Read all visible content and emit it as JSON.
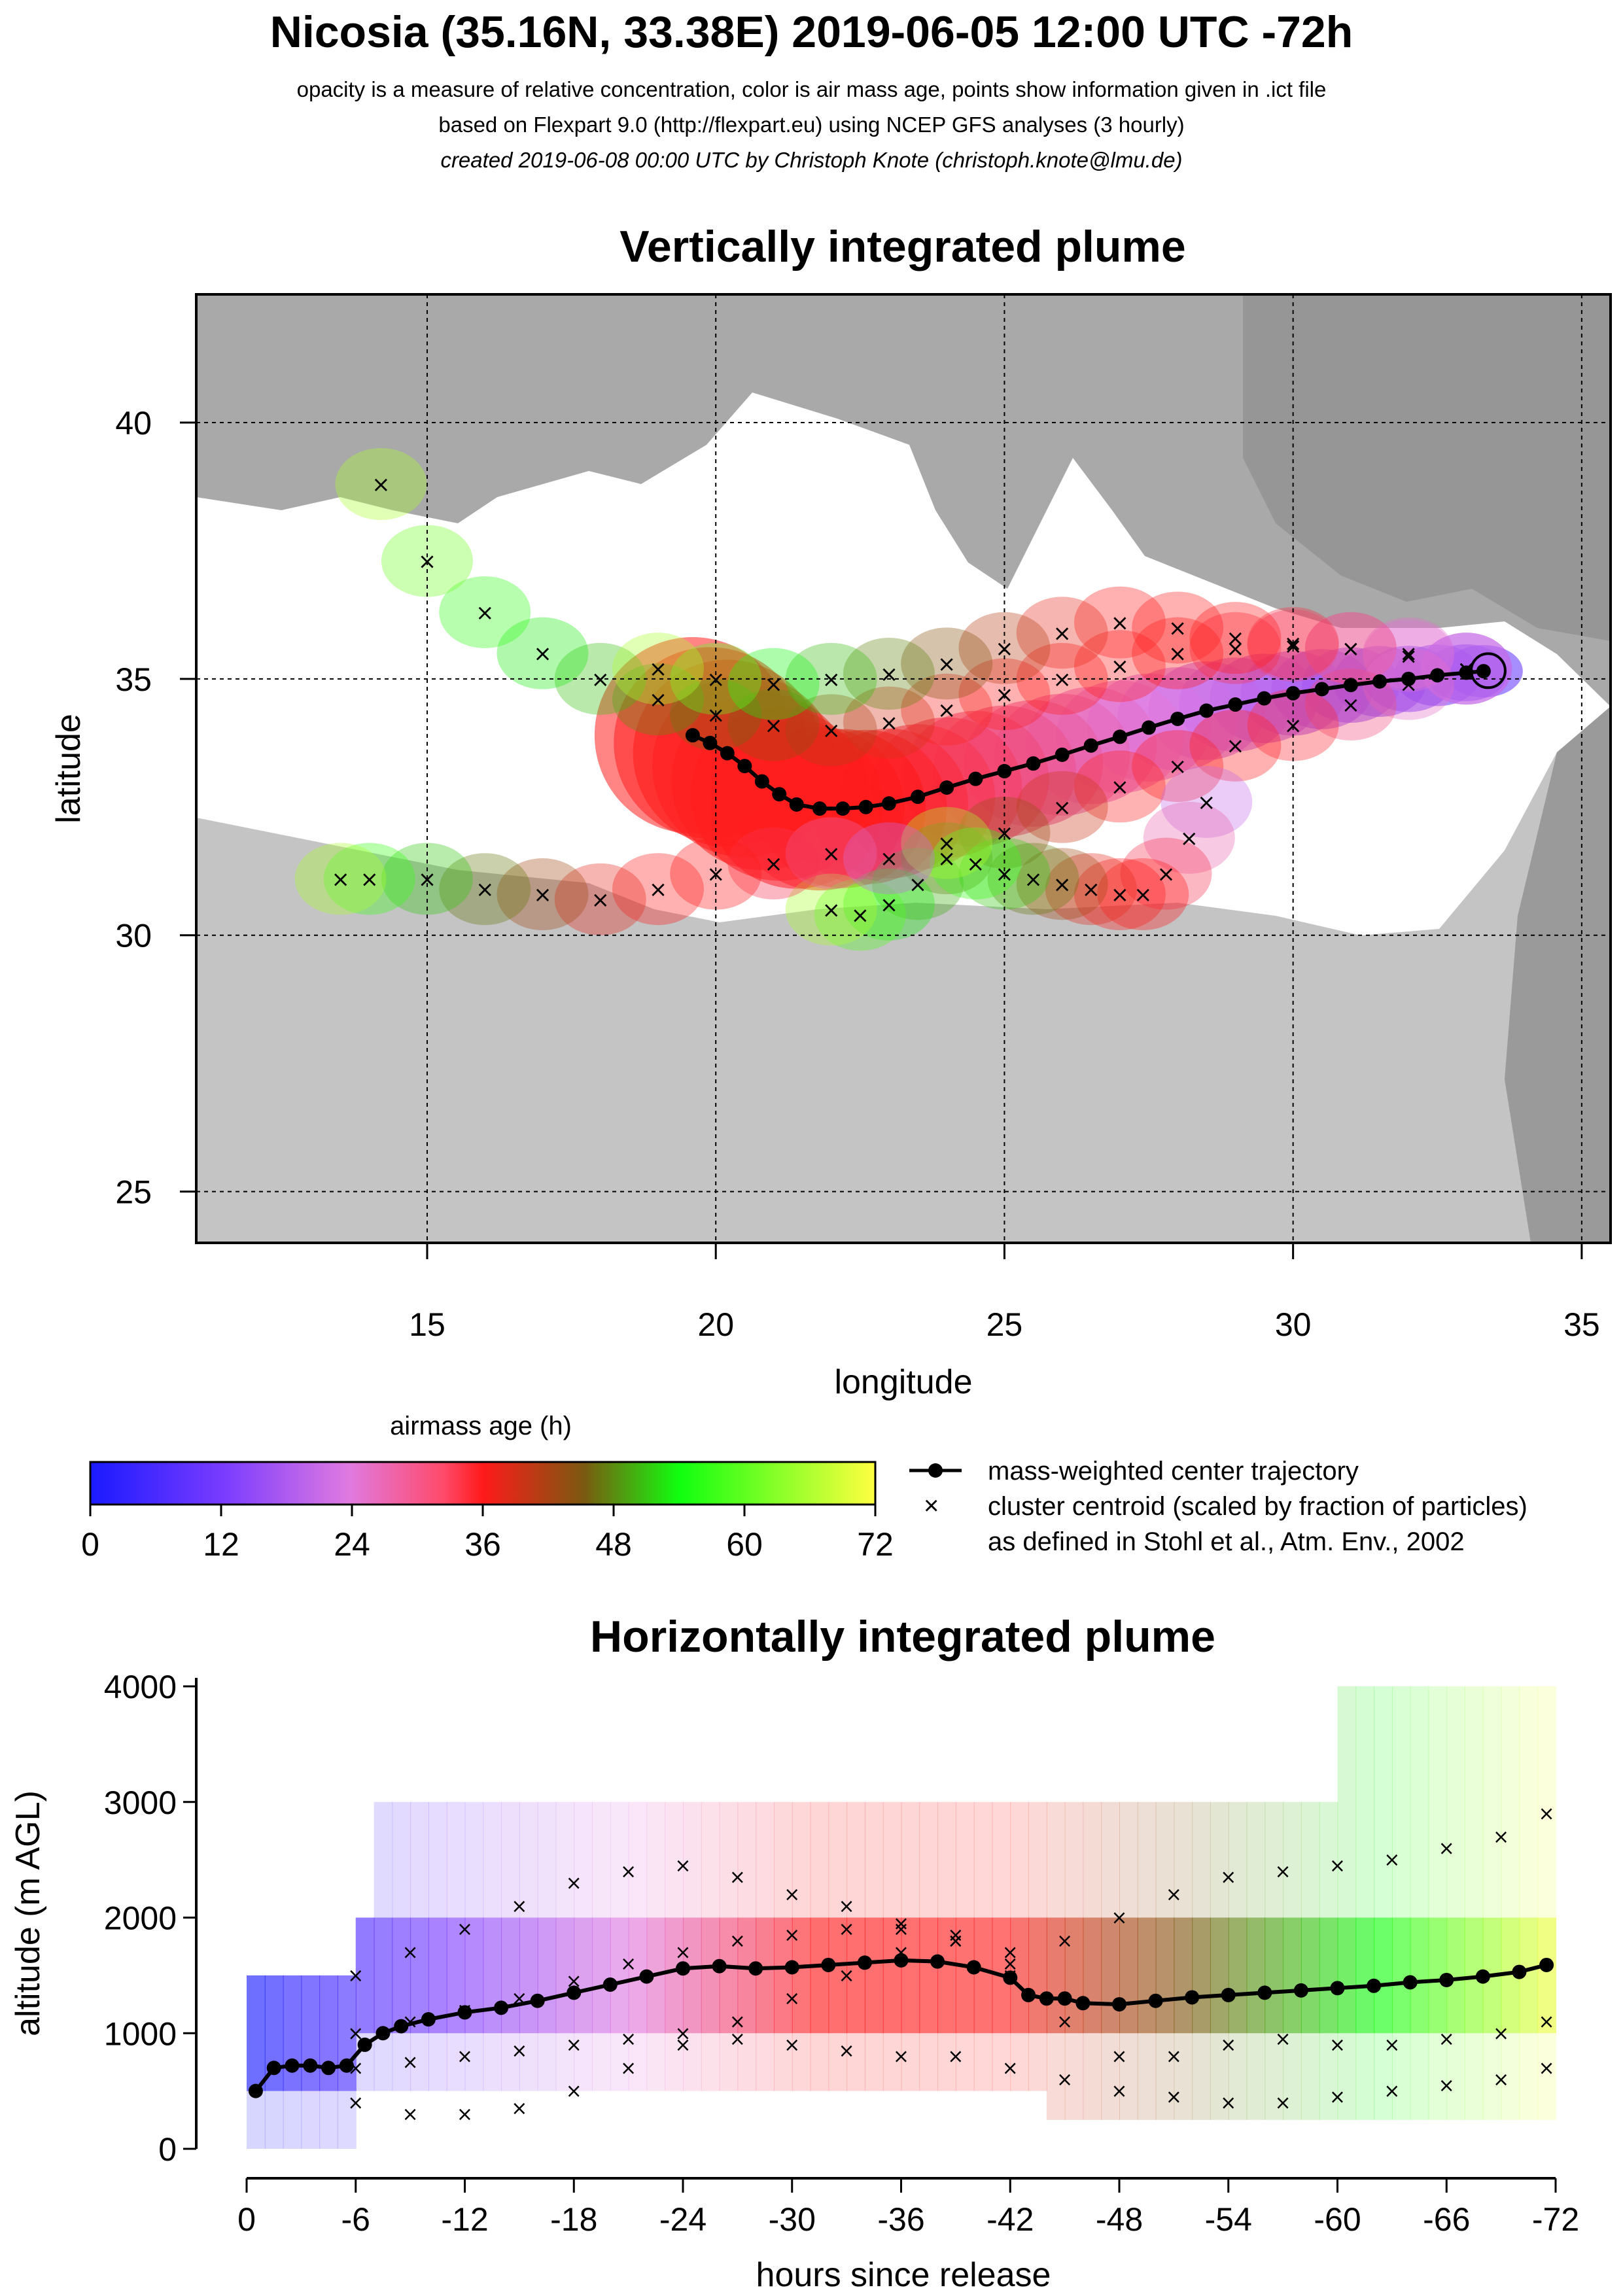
{
  "header": {
    "title": "Nicosia (35.16N, 33.38E) 2019-06-05 12:00 UTC -72h",
    "line1": "opacity is a measure of relative concentration, color is air mass age, points show information given in .ict file",
    "line2": "based on Flexpart 9.0 (http://flexpart.eu) using NCEP GFS analyses (3 hourly)",
    "line3": "created 2019-06-08 00:00 UTC by Christoph Knote (christoph.knote@lmu.de)"
  },
  "colors": {
    "age_ramp": [
      "#1a1aff",
      "#7a3cff",
      "#e07ae0",
      "#ff1a1a",
      "#ff2020",
      "#7a5a10",
      "#10ff10",
      "#ffff40"
    ],
    "land_gray": "#b8b8b8",
    "sea": "#ffffff"
  },
  "chart_data": [
    {
      "type": "scatter",
      "title": "Vertically integrated plume",
      "xlabel": "longitude",
      "ylabel": "latitude",
      "xlim": [
        11,
        35.5
      ],
      "ylim": [
        24,
        42.5
      ],
      "xticks": [
        15,
        20,
        25,
        30,
        35
      ],
      "yticks": [
        25,
        30,
        35,
        40
      ],
      "release_point": {
        "lon": 33.38,
        "lat": 35.16
      },
      "center_trajectory": {
        "name": "mass-weighted center trajectory",
        "lon": [
          33.3,
          33.0,
          32.5,
          32.0,
          31.5,
          31.0,
          30.5,
          30.0,
          29.5,
          29.0,
          28.5,
          28.0,
          27.5,
          27.0,
          26.5,
          26.0,
          25.5,
          25.0,
          24.5,
          24.0,
          23.5,
          23.0,
          22.6,
          22.2,
          21.8,
          21.4,
          21.1,
          20.8,
          20.5,
          20.2,
          19.9,
          19.6
        ],
        "lat": [
          35.15,
          35.12,
          35.07,
          35.0,
          34.95,
          34.88,
          34.8,
          34.72,
          34.62,
          34.5,
          34.38,
          34.22,
          34.05,
          33.87,
          33.7,
          33.52,
          33.35,
          33.2,
          33.05,
          32.88,
          32.7,
          32.57,
          32.5,
          32.47,
          32.47,
          32.55,
          32.75,
          33.0,
          33.3,
          33.55,
          33.75,
          33.9
        ]
      },
      "cluster_centroids": [
        {
          "lon": [
            33.0,
            32.0,
            31.0,
            30.0,
            29.0,
            28.0,
            27.0,
            26.0,
            25.0,
            24.0,
            23.0,
            22.0,
            21.0,
            20.0,
            19.0,
            18.0,
            17.0,
            16.0,
            15.0,
            14.2
          ],
          "lat": [
            35.2,
            35.45,
            35.6,
            35.65,
            35.6,
            35.5,
            35.25,
            35.0,
            34.7,
            34.4,
            34.15,
            34.0,
            34.1,
            34.3,
            34.6,
            35.0,
            35.5,
            36.3,
            37.3,
            38.8
          ]
        },
        {
          "lon": [
            33.0,
            32.0,
            31.0,
            30.0,
            29.0,
            28.0,
            27.0,
            26.0,
            25.0,
            24.0,
            23.0,
            22.0,
            21.0,
            20.0,
            19.0
          ],
          "lat": [
            35.2,
            35.5,
            35.6,
            35.7,
            35.8,
            36.0,
            36.1,
            35.9,
            35.6,
            35.3,
            35.1,
            35.0,
            34.9,
            35.0,
            35.2
          ]
        },
        {
          "lon": [
            33.0,
            32.0,
            31.0,
            30.0,
            29.0,
            28.0,
            27.0,
            26.0,
            25.0,
            24.0,
            23.5,
            23.0,
            22.5,
            22.0
          ],
          "lat": [
            35.2,
            34.9,
            34.5,
            34.1,
            33.7,
            33.3,
            32.9,
            32.5,
            32.0,
            31.5,
            31.0,
            30.6,
            30.4,
            30.5
          ]
        },
        {
          "lon": [
            28.5,
            28.2,
            27.8,
            27.4,
            27.0,
            26.5,
            26.0,
            25.5,
            25.0,
            24.5,
            24.0
          ],
          "lat": [
            32.6,
            31.9,
            31.2,
            30.8,
            30.8,
            30.9,
            31.0,
            31.1,
            31.2,
            31.4,
            31.8
          ]
        },
        {
          "lon": [
            23.0,
            22.0,
            21.0,
            20.0,
            19.0,
            18.0,
            17.0,
            16.0,
            15.0,
            14.0,
            13.5
          ],
          "lat": [
            31.5,
            31.6,
            31.4,
            31.2,
            30.9,
            30.7,
            30.8,
            30.9,
            31.1,
            31.1,
            31.1
          ]
        }
      ]
    },
    {
      "type": "line",
      "title": "Horizontally integrated plume",
      "xlabel": "hours since release",
      "ylabel": "altitude (m AGL)",
      "xlim": [
        0,
        -72
      ],
      "ylim": [
        0,
        4000
      ],
      "xtick_labels": [
        "0",
        "-6",
        "-12",
        "-18",
        "-24",
        "-30",
        "-36",
        "-42",
        "-48",
        "-54",
        "-60",
        "-66",
        "-72"
      ],
      "ytick_labels": [
        "0",
        "1000",
        "2000",
        "3000",
        "4000"
      ],
      "center_trajectory": {
        "name": "mass-weighted center trajectory",
        "hours": [
          0.5,
          1.5,
          2.5,
          3.5,
          4.5,
          5.5,
          6.5,
          7.5,
          8.5,
          10,
          12,
          14,
          16,
          18,
          20,
          22,
          24,
          26,
          28,
          30,
          32,
          34,
          36,
          38,
          40,
          42,
          43,
          44,
          45,
          46,
          48,
          50,
          52,
          54,
          56,
          58,
          60,
          62,
          64,
          66,
          68,
          70,
          71.5
        ],
        "altitude": [
          500,
          700,
          720,
          720,
          700,
          720,
          900,
          1000,
          1060,
          1120,
          1180,
          1220,
          1280,
          1350,
          1420,
          1490,
          1560,
          1580,
          1560,
          1570,
          1590,
          1610,
          1630,
          1620,
          1570,
          1480,
          1330,
          1300,
          1300,
          1260,
          1250,
          1280,
          1310,
          1330,
          1350,
          1370,
          1390,
          1410,
          1440,
          1460,
          1490,
          1530,
          1590
        ]
      },
      "cluster_centroids": [
        {
          "hours": [
            6,
            9,
            12,
            15,
            18,
            21,
            24,
            27,
            30,
            33,
            36,
            39,
            42,
            45,
            48,
            51,
            54,
            57,
            60,
            63,
            66,
            69,
            71.5
          ],
          "altitude": [
            1500,
            1700,
            1900,
            2100,
            2300,
            2400,
            2450,
            2350,
            2200,
            2100,
            1950,
            1850,
            1700,
            1800,
            2000,
            2200,
            2350,
            2400,
            2450,
            2500,
            2600,
            2700,
            2900
          ]
        },
        {
          "hours": [
            6,
            9,
            12,
            15,
            18,
            21,
            24,
            27,
            30,
            33,
            36,
            39,
            42,
            45,
            48,
            51,
            54,
            57,
            60,
            63,
            66,
            69,
            71.5
          ],
          "altitude": [
            1000,
            1100,
            1200,
            1300,
            1450,
            1600,
            1700,
            1800,
            1850,
            1900,
            1900,
            1800,
            1500,
            1100,
            800,
            800,
            900,
            950,
            900,
            900,
            950,
            1000,
            1100
          ]
        },
        {
          "hours": [
            6,
            9,
            12,
            15,
            18,
            21,
            24,
            27,
            30,
            33,
            36,
            39,
            42,
            45,
            48,
            51,
            54,
            57,
            60,
            63,
            66,
            69,
            71.5
          ],
          "altitude": [
            700,
            750,
            800,
            850,
            900,
            950,
            1000,
            950,
            900,
            850,
            800,
            800,
            700,
            600,
            500,
            450,
            400,
            400,
            450,
            500,
            550,
            600,
            700
          ]
        },
        {
          "hours": [
            6,
            9,
            12,
            15,
            18,
            21,
            24,
            27,
            30,
            33,
            36,
            39,
            42
          ],
          "altitude": [
            400,
            300,
            300,
            350,
            500,
            700,
            900,
            1100,
            1300,
            1500,
            1700,
            1800,
            1600
          ]
        }
      ]
    }
  ],
  "colorbar": {
    "title": "airmass age (h)",
    "tick_labels": [
      "0",
      "12",
      "24",
      "36",
      "48",
      "60",
      "72"
    ]
  },
  "legend": {
    "line_label": "mass-weighted center trajectory",
    "cross_label": "cluster centroid (scaled by fraction of particles)",
    "cross_label2": "as defined in Stohl et al., Atm. Env., 2002"
  }
}
